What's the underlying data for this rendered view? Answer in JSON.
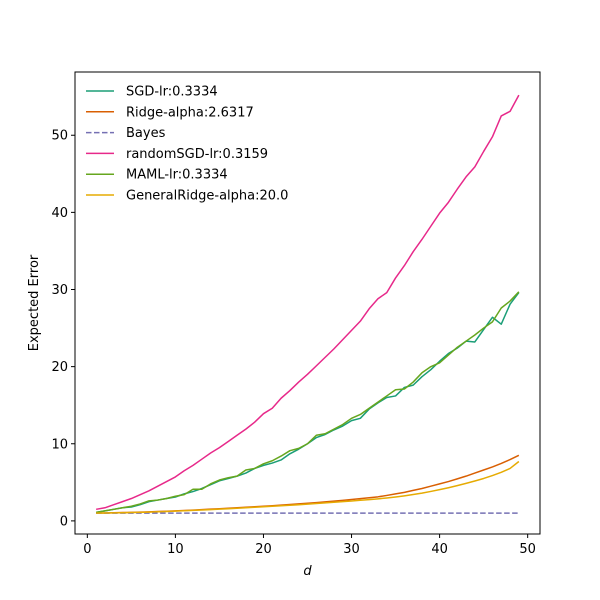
{
  "chart_data": {
    "type": "line",
    "title": "",
    "xlabel": "d",
    "ylabel": "Expected Error",
    "xlim": [
      -1.4,
      51.4
    ],
    "ylim": [
      -1.7,
      58.2
    ],
    "xticks": [
      0,
      10,
      20,
      30,
      40,
      50
    ],
    "yticks": [
      0,
      10,
      20,
      30,
      40,
      50
    ],
    "grid": false,
    "legend_position": "top-left",
    "x": [
      1,
      2,
      3,
      4,
      5,
      6,
      7,
      8,
      9,
      10,
      11,
      12,
      13,
      14,
      15,
      16,
      17,
      18,
      19,
      20,
      21,
      22,
      23,
      24,
      25,
      26,
      27,
      28,
      29,
      30,
      31,
      32,
      33,
      34,
      35,
      36,
      37,
      38,
      39,
      40,
      41,
      42,
      43,
      44,
      45,
      46,
      47,
      48,
      49
    ],
    "series": [
      {
        "name": "SGD-lr:0.3334",
        "color": "#1b9e77",
        "dashed": false,
        "values": [
          1.1,
          1.3,
          1.5,
          1.7,
          1.8,
          2.1,
          2.5,
          2.7,
          2.9,
          3.1,
          3.5,
          3.8,
          4.2,
          4.7,
          5.2,
          5.5,
          5.8,
          6.2,
          6.8,
          7.2,
          7.5,
          7.9,
          8.7,
          9.3,
          10.0,
          10.8,
          11.2,
          11.8,
          12.3,
          13.0,
          13.3,
          14.5,
          15.3,
          16.0,
          16.2,
          17.3,
          17.6,
          18.7,
          19.6,
          20.7,
          21.7,
          22.4,
          23.3,
          23.2,
          24.8,
          26.4,
          25.5,
          28.1,
          29.6
        ]
      },
      {
        "name": "Ridge-alpha:2.6317",
        "color": "#d95f02",
        "dashed": false,
        "values": [
          1.02,
          1.03,
          1.05,
          1.08,
          1.1,
          1.13,
          1.17,
          1.21,
          1.25,
          1.3,
          1.35,
          1.4,
          1.46,
          1.52,
          1.58,
          1.64,
          1.7,
          1.76,
          1.83,
          1.9,
          1.97,
          2.05,
          2.12,
          2.2,
          2.28,
          2.37,
          2.46,
          2.56,
          2.66,
          2.77,
          2.88,
          3.0,
          3.12,
          3.3,
          3.5,
          3.7,
          3.95,
          4.2,
          4.5,
          4.8,
          5.1,
          5.45,
          5.8,
          6.2,
          6.6,
          7.0,
          7.45,
          7.95,
          8.5
        ]
      },
      {
        "name": "Bayes",
        "color": "#7570b3",
        "dashed": true,
        "values": [
          1,
          1,
          1,
          1,
          1,
          1,
          1,
          1,
          1,
          1,
          1,
          1,
          1,
          1,
          1,
          1,
          1,
          1,
          1,
          1,
          1,
          1,
          1,
          1,
          1,
          1,
          1,
          1,
          1,
          1,
          1,
          1,
          1,
          1,
          1,
          1,
          1,
          1,
          1,
          1,
          1,
          1,
          1,
          1,
          1,
          1,
          1,
          1,
          1
        ]
      },
      {
        "name": "randomSGD-lr:0.3159",
        "color": "#e7298a",
        "dashed": false,
        "values": [
          1.5,
          1.7,
          2.1,
          2.5,
          2.9,
          3.4,
          3.9,
          4.5,
          5.1,
          5.7,
          6.5,
          7.2,
          8.0,
          8.8,
          9.5,
          10.3,
          11.1,
          11.9,
          12.8,
          13.9,
          14.6,
          15.9,
          16.9,
          18.0,
          19.0,
          20.1,
          21.2,
          22.3,
          23.5,
          24.7,
          25.9,
          27.5,
          28.8,
          29.6,
          31.5,
          33.1,
          34.9,
          36.5,
          38.2,
          39.9,
          41.3,
          43.0,
          44.6,
          45.9,
          47.9,
          49.8,
          52.5,
          53.1,
          55.2
        ]
      },
      {
        "name": "MAML-lr:0.3334",
        "color": "#66a61e",
        "dashed": false,
        "values": [
          1.1,
          1.3,
          1.5,
          1.7,
          1.9,
          2.2,
          2.6,
          2.7,
          2.9,
          3.2,
          3.4,
          4.1,
          4.1,
          4.8,
          5.3,
          5.6,
          5.8,
          6.6,
          6.8,
          7.4,
          7.8,
          8.4,
          9.1,
          9.4,
          10.0,
          11.1,
          11.3,
          11.9,
          12.5,
          13.3,
          13.8,
          14.6,
          15.4,
          16.2,
          17.0,
          17.1,
          18.0,
          19.2,
          20.0,
          20.5,
          21.5,
          22.5,
          23.3,
          24.1,
          25.0,
          25.8,
          27.6,
          28.5,
          29.7
        ]
      },
      {
        "name": "GeneralRidge-alpha:20.0",
        "color": "#e6ab02",
        "dashed": false,
        "values": [
          1.01,
          1.02,
          1.04,
          1.06,
          1.08,
          1.11,
          1.14,
          1.18,
          1.22,
          1.26,
          1.31,
          1.36,
          1.41,
          1.46,
          1.52,
          1.58,
          1.64,
          1.7,
          1.76,
          1.83,
          1.89,
          1.96,
          2.03,
          2.1,
          2.18,
          2.25,
          2.33,
          2.41,
          2.5,
          2.58,
          2.67,
          2.76,
          2.86,
          2.97,
          3.1,
          3.25,
          3.42,
          3.6,
          3.82,
          4.05,
          4.3,
          4.57,
          4.86,
          5.17,
          5.5,
          5.88,
          6.3,
          6.8,
          7.7
        ]
      }
    ]
  }
}
